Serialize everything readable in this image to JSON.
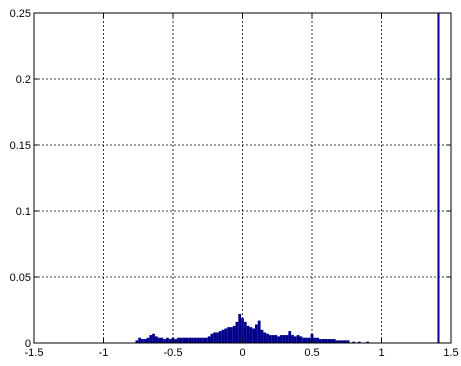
{
  "chart_data": {
    "type": "bar",
    "title": "",
    "xlabel": "",
    "ylabel": "",
    "xlim": [
      -1.5,
      1.5
    ],
    "ylim": [
      0,
      0.25
    ],
    "grid": true,
    "bar_color": "#00008b",
    "xticks": [
      -1.5,
      -1,
      -0.5,
      0,
      0.5,
      1,
      1.5
    ],
    "xtick_labels": [
      "-1.5",
      "-1",
      "-0.5",
      "0",
      "0.5",
      "1",
      "1.5"
    ],
    "yticks": [
      0,
      0.05,
      0.1,
      0.15,
      0.2,
      0.25
    ],
    "ytick_labels": [
      "0",
      "0.05",
      "0.1",
      "0.15",
      "0.2",
      "0.25"
    ],
    "bin_width": 0.02,
    "bins": [
      {
        "x": -0.76,
        "y": 0.002
      },
      {
        "x": -0.74,
        "y": 0.004
      },
      {
        "x": -0.72,
        "y": 0.003
      },
      {
        "x": -0.7,
        "y": 0.003
      },
      {
        "x": -0.68,
        "y": 0.004
      },
      {
        "x": -0.66,
        "y": 0.006
      },
      {
        "x": -0.64,
        "y": 0.007
      },
      {
        "x": -0.62,
        "y": 0.005
      },
      {
        "x": -0.6,
        "y": 0.004
      },
      {
        "x": -0.58,
        "y": 0.004
      },
      {
        "x": -0.56,
        "y": 0.003
      },
      {
        "x": -0.54,
        "y": 0.004
      },
      {
        "x": -0.52,
        "y": 0.003
      },
      {
        "x": -0.5,
        "y": 0.004
      },
      {
        "x": -0.48,
        "y": 0.003
      },
      {
        "x": -0.46,
        "y": 0.004
      },
      {
        "x": -0.44,
        "y": 0.004
      },
      {
        "x": -0.42,
        "y": 0.004
      },
      {
        "x": -0.4,
        "y": 0.004
      },
      {
        "x": -0.38,
        "y": 0.004
      },
      {
        "x": -0.36,
        "y": 0.004
      },
      {
        "x": -0.34,
        "y": 0.004
      },
      {
        "x": -0.32,
        "y": 0.004
      },
      {
        "x": -0.3,
        "y": 0.004
      },
      {
        "x": -0.28,
        "y": 0.004
      },
      {
        "x": -0.26,
        "y": 0.004
      },
      {
        "x": -0.24,
        "y": 0.005
      },
      {
        "x": -0.22,
        "y": 0.007
      },
      {
        "x": -0.2,
        "y": 0.008
      },
      {
        "x": -0.18,
        "y": 0.008
      },
      {
        "x": -0.16,
        "y": 0.009
      },
      {
        "x": -0.14,
        "y": 0.01
      },
      {
        "x": -0.12,
        "y": 0.011
      },
      {
        "x": -0.1,
        "y": 0.012
      },
      {
        "x": -0.08,
        "y": 0.012
      },
      {
        "x": -0.06,
        "y": 0.013
      },
      {
        "x": -0.04,
        "y": 0.016
      },
      {
        "x": -0.02,
        "y": 0.022
      },
      {
        "x": 0.0,
        "y": 0.019
      },
      {
        "x": 0.02,
        "y": 0.016
      },
      {
        "x": 0.04,
        "y": 0.013
      },
      {
        "x": 0.06,
        "y": 0.012
      },
      {
        "x": 0.08,
        "y": 0.011
      },
      {
        "x": 0.1,
        "y": 0.014
      },
      {
        "x": 0.12,
        "y": 0.017
      },
      {
        "x": 0.14,
        "y": 0.01
      },
      {
        "x": 0.16,
        "y": 0.008
      },
      {
        "x": 0.18,
        "y": 0.007
      },
      {
        "x": 0.2,
        "y": 0.006
      },
      {
        "x": 0.22,
        "y": 0.006
      },
      {
        "x": 0.24,
        "y": 0.006
      },
      {
        "x": 0.26,
        "y": 0.005
      },
      {
        "x": 0.28,
        "y": 0.006
      },
      {
        "x": 0.3,
        "y": 0.006
      },
      {
        "x": 0.32,
        "y": 0.006
      },
      {
        "x": 0.34,
        "y": 0.009
      },
      {
        "x": 0.36,
        "y": 0.006
      },
      {
        "x": 0.38,
        "y": 0.005
      },
      {
        "x": 0.4,
        "y": 0.006
      },
      {
        "x": 0.42,
        "y": 0.005
      },
      {
        "x": 0.44,
        "y": 0.004
      },
      {
        "x": 0.46,
        "y": 0.004
      },
      {
        "x": 0.48,
        "y": 0.004
      },
      {
        "x": 0.5,
        "y": 0.007
      },
      {
        "x": 0.52,
        "y": 0.004
      },
      {
        "x": 0.54,
        "y": 0.004
      },
      {
        "x": 0.56,
        "y": 0.003
      },
      {
        "x": 0.58,
        "y": 0.003
      },
      {
        "x": 0.6,
        "y": 0.003
      },
      {
        "x": 0.62,
        "y": 0.003
      },
      {
        "x": 0.64,
        "y": 0.003
      },
      {
        "x": 0.66,
        "y": 0.003
      },
      {
        "x": 0.68,
        "y": 0.002
      },
      {
        "x": 0.7,
        "y": 0.002
      },
      {
        "x": 0.72,
        "y": 0.002
      },
      {
        "x": 0.74,
        "y": 0.002
      },
      {
        "x": 0.76,
        "y": 0.002
      },
      {
        "x": 0.8,
        "y": 0.001
      },
      {
        "x": 0.84,
        "y": 0.001
      },
      {
        "x": 0.9,
        "y": 0.001
      }
    ],
    "spike": {
      "x": 1.41,
      "y": 0.25
    }
  }
}
